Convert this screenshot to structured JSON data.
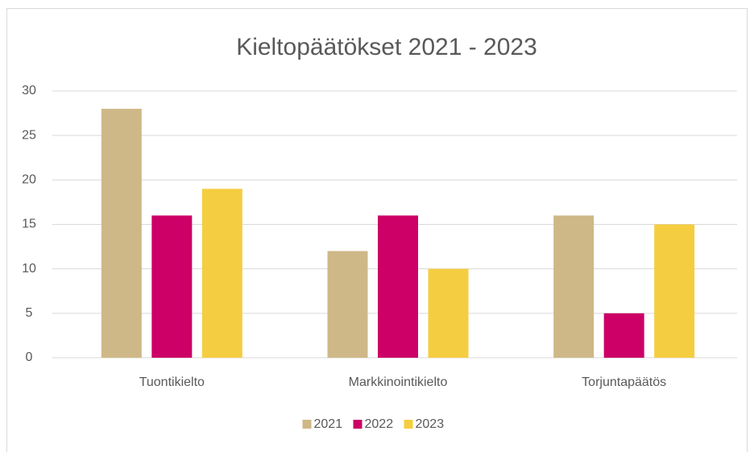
{
  "chart_data": {
    "type": "bar",
    "title": "Kieltopäätökset 2021 - 2023",
    "categories": [
      "Tuontikielto",
      "Markkinointikielto",
      "Torjuntapäätös"
    ],
    "series": [
      {
        "name": "2021",
        "color": "#cfb887",
        "values": [
          28,
          12,
          16
        ]
      },
      {
        "name": "2022",
        "color": "#cc0066",
        "values": [
          16,
          16,
          5
        ]
      },
      {
        "name": "2023",
        "color": "#f5cd40",
        "values": [
          19,
          10,
          15
        ]
      }
    ],
    "ylim": [
      0,
      30
    ],
    "yticks": [
      0,
      5,
      10,
      15,
      20,
      25,
      30
    ],
    "grid": true,
    "legend": "bottom"
  }
}
